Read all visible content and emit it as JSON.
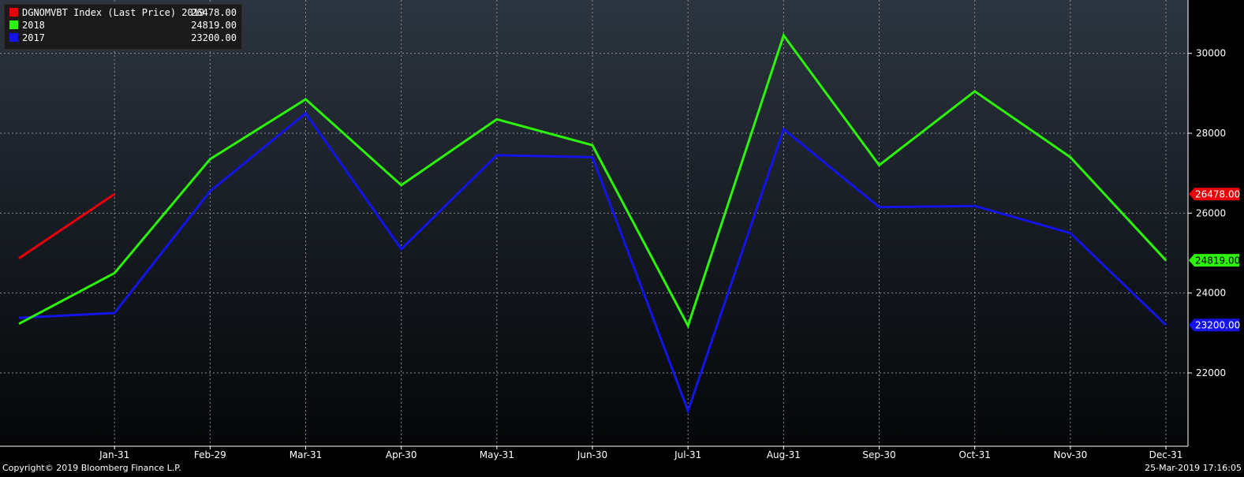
{
  "chart_data": {
    "type": "line",
    "categories": [
      "",
      "Jan-31",
      "Feb-29",
      "Mar-31",
      "Apr-30",
      "May-31",
      "Jun-30",
      "Jul-31",
      "Aug-31",
      "Sep-30",
      "Oct-31",
      "Nov-30",
      "Dec-31"
    ],
    "series": [
      {
        "name": "DGNOMVBT Index (Last Price) 2019",
        "color": "#e8000a",
        "last_value": "26478.00",
        "values": [
          24870,
          26478,
          null,
          null,
          null,
          null,
          null,
          null,
          null,
          null,
          null,
          null,
          null
        ]
      },
      {
        "name": "2018",
        "color": "#2cf50a",
        "last_value": "24819.00",
        "values": [
          23230,
          24500,
          27350,
          28850,
          26700,
          28350,
          27700,
          23180,
          30450,
          27200,
          29050,
          27400,
          24819
        ]
      },
      {
        "name": "2017",
        "color": "#1414e6",
        "last_value": "23200.00",
        "values": [
          23380,
          23500,
          26550,
          28500,
          25100,
          27450,
          27400,
          21050,
          28100,
          26150,
          26180,
          25500,
          23200
        ]
      }
    ],
    "y_ticks": [
      "22000",
      "24000",
      "26000",
      "28000",
      "30000"
    ],
    "ylim": [
      20000,
      31350
    ],
    "grid": true,
    "legend_position": "top-left"
  },
  "footer": {
    "copyright": "Copyright© 2019 Bloomberg Finance L.P.",
    "timestamp": "25-Mar-2019 17:16:05"
  }
}
